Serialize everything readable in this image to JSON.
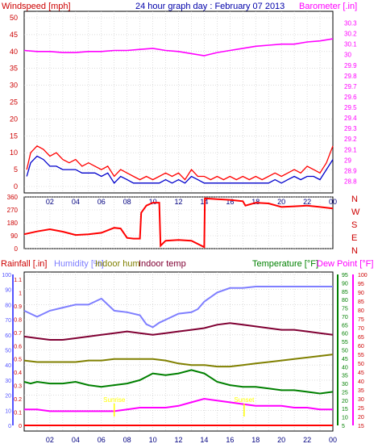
{
  "header": {
    "title": "24 hour graph day : February 07 2013",
    "windspeed_label": "Windspeed [mph]",
    "barometer_label": "Barometer [.in]"
  },
  "colors": {
    "wind": "#ff0000",
    "gust": "#0000cc",
    "barometer": "#ff00ff",
    "direction": "#ff0000",
    "rain": "#ff0000",
    "humidity": "#7f7fff",
    "indoor_hum": "#808000",
    "indoor_temp": "#800033",
    "temperature": "#008000",
    "dew_point": "#ff00ff",
    "sun": "#ffff00",
    "title_blue": "#0000aa",
    "left_axis_red": "#cc0000",
    "left_axis_blue": "#5555ff"
  },
  "chart_data": [
    {
      "type": "line",
      "x_labels": [
        "02",
        "04",
        "06",
        "08",
        "10",
        "12",
        "14",
        "16",
        "18",
        "20",
        "22",
        "00"
      ],
      "x_range": [
        0,
        24
      ],
      "left_axis": {
        "label": "Windspeed [mph]",
        "ticks": [
          0,
          5,
          10,
          15,
          20,
          25,
          30,
          35,
          40,
          45,
          50
        ],
        "range": [
          0,
          50
        ]
      },
      "right_axis": {
        "label": "Barometer [.in]",
        "ticks": [
          "28.8",
          "28.9",
          "29",
          "29.1",
          "29.2",
          "29.3",
          "29.4",
          "29.5",
          "29.6",
          "29.7",
          "29.8",
          "29.9",
          "30",
          "30.1",
          "30.2",
          "30.3"
        ],
        "range": [
          28.75,
          30.35
        ]
      },
      "grid": true,
      "series": [
        {
          "axis": "left",
          "x": [
            0.2,
            0.5,
            1.0,
            1.5,
            2.0,
            2.5,
            3.0,
            3.5,
            4.0,
            4.5,
            5.0,
            5.5,
            6.0,
            6.5,
            7.0,
            7.5,
            8.0,
            8.5,
            9.0,
            9.5,
            10.0,
            10.5,
            11.0,
            11.5,
            12.0,
            12.5,
            13.0,
            13.5,
            14.0,
            14.5,
            15.0,
            15.5,
            16.0,
            16.5,
            17.0,
            17.5,
            18.0,
            18.5,
            19.0,
            19.5,
            20.0,
            20.5,
            21.0,
            21.5,
            22.0,
            22.5,
            23.0,
            23.5,
            24.0
          ],
          "values": [
            5,
            10,
            12,
            11,
            9,
            10,
            8,
            7,
            8,
            6,
            7,
            6,
            5,
            6,
            3,
            5,
            4,
            3,
            2,
            3,
            2,
            3,
            4,
            3,
            4,
            2,
            5,
            3,
            3,
            2,
            3,
            2,
            3,
            2,
            3,
            2,
            3,
            2,
            3,
            4,
            3,
            4,
            5,
            4,
            6,
            5,
            4,
            7,
            12
          ]
        },
        {
          "axis": "left",
          "x": [
            0.2,
            0.5,
            1.0,
            1.5,
            2.0,
            2.5,
            3.0,
            3.5,
            4.0,
            4.5,
            5.0,
            5.5,
            6.0,
            6.5,
            7.0,
            7.5,
            8.0,
            8.5,
            9.0,
            9.5,
            10.0,
            10.5,
            11.0,
            11.5,
            12.0,
            12.5,
            13.0,
            13.5,
            14.0,
            14.5,
            15.0,
            15.5,
            16.0,
            16.5,
            17.0,
            17.5,
            18.0,
            18.5,
            19.0,
            19.5,
            20.0,
            20.5,
            21.0,
            21.5,
            22.0,
            22.5,
            23.0,
            23.5,
            24.0
          ],
          "values": [
            3,
            7,
            9,
            8,
            6,
            6,
            5,
            5,
            5,
            4,
            4,
            4,
            3,
            4,
            1,
            3,
            2,
            1,
            1,
            1,
            1,
            1,
            2,
            1,
            2,
            1,
            3,
            2,
            1,
            1,
            1,
            1,
            1,
            1,
            1,
            1,
            1,
            1,
            1,
            2,
            1,
            2,
            3,
            2,
            3,
            3,
            2,
            5,
            8
          ]
        },
        {
          "axis": "right",
          "x": [
            0,
            1,
            2,
            3,
            4,
            5,
            6,
            7,
            8,
            9,
            10,
            11,
            12,
            13,
            14,
            15,
            16,
            17,
            18,
            19,
            20,
            21,
            22,
            23,
            24
          ],
          "values": [
            30.04,
            30.03,
            30.03,
            30.02,
            30.02,
            30.03,
            30.03,
            30.04,
            30.04,
            30.05,
            30.06,
            30.04,
            30.03,
            30.01,
            29.99,
            30.02,
            30.04,
            30.06,
            30.08,
            30.09,
            30.1,
            30.1,
            30.12,
            30.13,
            30.15
          ]
        }
      ]
    },
    {
      "type": "line",
      "x_range": [
        0,
        24
      ],
      "left_axis": {
        "ticks": [
          0,
          90,
          180,
          270,
          360
        ],
        "range": [
          0,
          360
        ]
      },
      "right_axis": {
        "ticks": [
          "N",
          "W",
          "S",
          "E",
          "N"
        ]
      },
      "grid": true,
      "series": [
        {
          "axis": "left",
          "x": [
            0,
            1,
            2,
            3,
            4,
            5,
            6,
            7,
            7.5,
            8,
            8.5,
            9,
            9.1,
            9.5,
            10,
            10.5,
            10.6,
            11,
            12,
            13,
            14,
            14.05,
            15,
            16,
            17,
            17.2,
            18,
            19,
            20,
            21,
            22,
            23,
            24
          ],
          "values": [
            100,
            120,
            135,
            118,
            95,
            100,
            110,
            145,
            140,
            75,
            70,
            70,
            250,
            300,
            320,
            320,
            20,
            55,
            60,
            55,
            10,
            350,
            345,
            340,
            330,
            300,
            320,
            315,
            290,
            295,
            300,
            290,
            280
          ]
        }
      ]
    },
    {
      "type": "line",
      "x_range": [
        0,
        24
      ],
      "legend": [
        "Rainfall [.in]",
        "Humidity [%]",
        "Indoor hum",
        "Indoor temp",
        "Temperature [°F]",
        "Dew Point [°F]"
      ],
      "left_axis": {
        "rain_label": "Rainfall [.in]",
        "rain_ticks": [
          "0",
          "0.1",
          "0.2",
          "0.3",
          "0.4",
          "0.5",
          "0.6",
          "0.7",
          "0.8",
          "0.9",
          "1",
          "1.1"
        ],
        "rain_range": [
          0,
          1.1
        ],
        "humidity_label": "Humidity [%]",
        "humidity_ticks": [
          "0",
          "10",
          "20",
          "30",
          "40",
          "50",
          "60",
          "70",
          "80",
          "90",
          "100"
        ],
        "humidity_range": [
          0,
          100
        ]
      },
      "right_axis": {
        "temp_label": "Temperature [°F]",
        "temp_ticks": [
          "5",
          "10",
          "15",
          "20",
          "25",
          "30",
          "35",
          "40",
          "45",
          "50",
          "55",
          "60",
          "65",
          "70",
          "75",
          "80",
          "85",
          "90",
          "95"
        ],
        "temp_range": [
          5,
          95
        ],
        "dew_label": "Dew Point [°F]",
        "dew_ticks": [
          "15",
          "20",
          "25",
          "30",
          "35",
          "40",
          "45",
          "50",
          "55",
          "60",
          "65",
          "70",
          "75",
          "80",
          "85",
          "90",
          "95",
          "100"
        ],
        "dew_range": [
          15,
          100
        ]
      },
      "annotations": [
        {
          "text": "Sunrise",
          "x": 7.0
        },
        {
          "text": "Sunset",
          "x": 17.1
        }
      ],
      "grid": true,
      "series": [
        {
          "name": "Humidity [%]",
          "axis": "humidity",
          "x": [
            0,
            1,
            2,
            3,
            4,
            5,
            6,
            7,
            8,
            9,
            9.5,
            10,
            10.5,
            11,
            12,
            13,
            13.5,
            14,
            14.5,
            15,
            16,
            17,
            18,
            19,
            20,
            21,
            22,
            23,
            24
          ],
          "values": [
            76,
            72,
            76,
            78,
            80,
            80,
            84,
            76,
            75,
            73,
            67,
            65,
            68,
            70,
            74,
            75,
            77,
            82,
            85,
            88,
            91,
            91,
            92,
            92,
            92,
            92,
            92,
            92,
            92
          ]
        },
        {
          "name": "Indoor temp",
          "axis": "temp",
          "x": [
            0,
            1,
            2,
            3,
            4,
            5,
            6,
            7,
            8,
            9,
            10,
            11,
            12,
            13,
            14,
            15,
            16,
            17,
            18,
            19,
            20,
            21,
            22,
            23,
            24
          ],
          "values": [
            58,
            57,
            56,
            56,
            57,
            58,
            59,
            60,
            61,
            60,
            59,
            60,
            61,
            62,
            63,
            65,
            66,
            65,
            64,
            63,
            62,
            62,
            61,
            60,
            59
          ]
        },
        {
          "name": "Indoor hum",
          "axis": "humidity",
          "x": [
            0,
            1,
            2,
            3,
            4,
            5,
            6,
            7,
            8,
            9,
            10,
            11,
            12,
            13,
            14,
            15,
            16,
            17,
            18,
            19,
            20,
            21,
            22,
            23,
            24
          ],
          "values": [
            43,
            42,
            42,
            42,
            42,
            43,
            43,
            44,
            44,
            44,
            44,
            43,
            41,
            40,
            40,
            39,
            39,
            40,
            41,
            42,
            43,
            44,
            45,
            46,
            47
          ]
        },
        {
          "name": "Temperature [°F]",
          "axis": "temp",
          "x": [
            0,
            0.5,
            1,
            2,
            3,
            4,
            5,
            6,
            7,
            8,
            9,
            10,
            11,
            12,
            13,
            13.5,
            14,
            15,
            16,
            17,
            18,
            19,
            20,
            21,
            22,
            23,
            24
          ],
          "values": [
            31,
            30,
            31,
            30,
            30,
            31,
            29,
            28,
            29,
            30,
            32,
            36,
            35,
            36,
            38,
            37,
            36,
            31,
            29,
            28,
            28,
            27,
            26,
            26,
            25,
            24,
            25
          ]
        },
        {
          "name": "Dew Point [°F]",
          "axis": "dew",
          "x": [
            0,
            1,
            2,
            3,
            4,
            5,
            6,
            7,
            8,
            9,
            10,
            11,
            12,
            13,
            14,
            15,
            16,
            17,
            18,
            19,
            20,
            21,
            22,
            23,
            24
          ],
          "values": [
            24,
            24,
            23,
            23,
            23,
            23,
            23,
            23,
            24,
            25,
            25,
            25,
            26,
            28,
            30,
            29,
            28,
            27,
            26,
            26,
            26,
            25,
            25,
            24,
            24
          ]
        },
        {
          "name": "Rainfall [.in]",
          "axis": "rain",
          "x": [
            0,
            24
          ],
          "values": [
            0,
            0
          ]
        }
      ]
    }
  ]
}
